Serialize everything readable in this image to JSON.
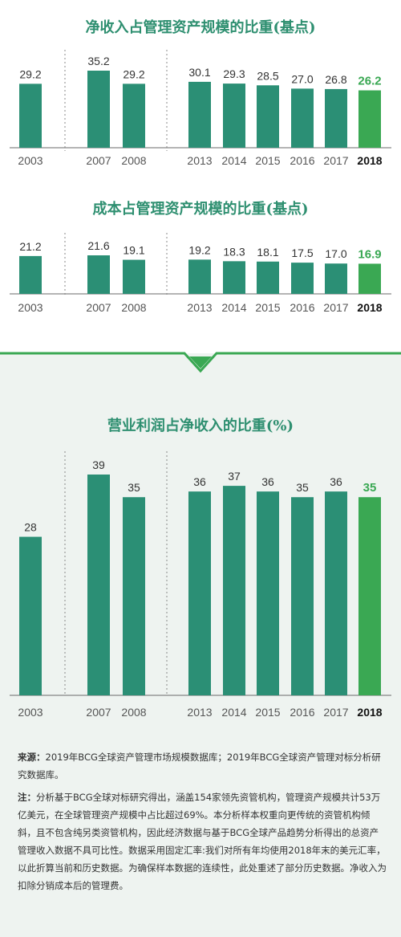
{
  "colors": {
    "bar": "#2b8f75",
    "highlight_bar": "#3aa853",
    "title": "#2e8f70",
    "divider": "#3aa853"
  },
  "chart_data": [
    {
      "type": "bar",
      "title": "净收入占管理资产规模的比重(基点)",
      "categories": [
        "2003",
        "2007",
        "2008",
        "2013",
        "2014",
        "2015",
        "2016",
        "2017",
        "2018"
      ],
      "values": [
        29.2,
        35.2,
        29.2,
        30.1,
        29.3,
        28.5,
        27.0,
        26.8,
        26.2
      ],
      "labels": [
        "29.2",
        "35.2",
        "29.2",
        "30.1",
        "29.3",
        "28.5",
        "27.0",
        "26.8",
        "26.2"
      ],
      "highlight": "2018",
      "separators_after": [
        "2003",
        "2008"
      ]
    },
    {
      "type": "bar",
      "title": "成本占管理资产规模的比重(基点)",
      "categories": [
        "2003",
        "2007",
        "2008",
        "2013",
        "2014",
        "2015",
        "2016",
        "2017",
        "2018"
      ],
      "values": [
        21.2,
        21.6,
        19.1,
        19.2,
        18.3,
        18.1,
        17.5,
        17.0,
        16.9
      ],
      "labels": [
        "21.2",
        "21.6",
        "19.1",
        "19.2",
        "18.3",
        "18.1",
        "17.5",
        "17.0",
        "16.9"
      ],
      "highlight": "2018",
      "separators_after": [
        "2003",
        "2008"
      ]
    },
    {
      "type": "bar",
      "title": "营业利润占净收入的比重(%)",
      "categories": [
        "2003",
        "2007",
        "2008",
        "2013",
        "2014",
        "2015",
        "2016",
        "2017",
        "2018"
      ],
      "values": [
        28,
        39,
        35,
        36,
        37,
        36,
        35,
        36,
        35
      ],
      "labels": [
        "28",
        "39",
        "35",
        "36",
        "37",
        "36",
        "35",
        "36",
        "35"
      ],
      "highlight": "2018",
      "separators_after": [
        "2003",
        "2008"
      ]
    }
  ],
  "notes": {
    "source_label": "来源：",
    "source_text": "2019年BCG全球资产管理市场规模数据库；2019年BCG全球资产管理对标分析研究数据库。",
    "note_label": "注：",
    "note_text": "分析基于BCG全球对标研究得出，涵盖154家领先资管机构，管理资产规模共计53万亿美元，在全球管理资产规模中占比超过69%。本分析样本权重向更传统的资管机构倾斜，且不包含纯另类资管机构，因此经济数据与基于BCG全球产品趋势分析得出的总资产管理收入数据不具可比性。数据采用固定汇率:我们对所有年均使用2018年末的美元汇率，以此折算当前和历史数据。为确保样本数据的连续性，此处重述了部分历史数据。净收入为扣除分销成本后的管理费。"
  }
}
